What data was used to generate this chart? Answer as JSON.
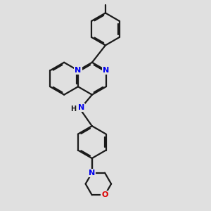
{
  "background_color": "#e0e0e0",
  "bond_color": "#1a1a1a",
  "nitrogen_color": "#0000ee",
  "oxygen_color": "#dd0000",
  "bond_width": 1.6,
  "dbo": 0.055,
  "figsize": [
    3.0,
    3.0
  ],
  "dpi": 100,
  "xlim": [
    0,
    10
  ],
  "ylim": [
    0,
    10
  ]
}
